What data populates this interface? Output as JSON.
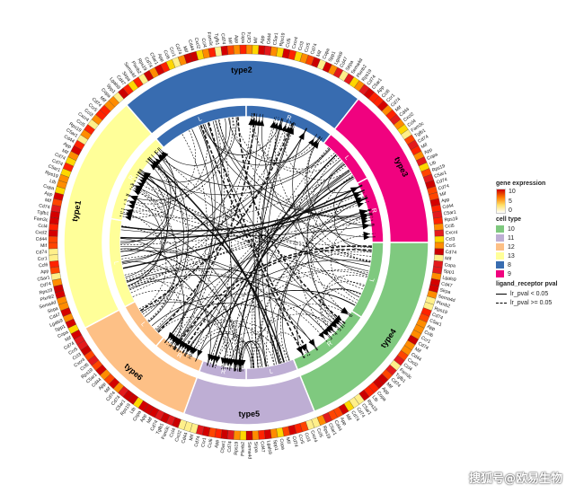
{
  "sectors": [
    {
      "name": "type1",
      "color": "#ffff99",
      "start": 242,
      "end": 319,
      "halves": [
        {
          "label": "L",
          "start": 242,
          "end": 280
        },
        {
          "label": "R",
          "start": 280,
          "end": 319
        }
      ]
    },
    {
      "name": "type2",
      "color": "#386cb0",
      "start": 319,
      "end": 38,
      "halves": [
        {
          "label": "L",
          "start": 319,
          "end": 0
        },
        {
          "label": "R",
          "start": 0,
          "end": 38
        }
      ]
    },
    {
      "name": "type3",
      "color": "#f0027f",
      "start": 38,
      "end": 90,
      "halves": [
        {
          "label": "L",
          "start": 38,
          "end": 62
        },
        {
          "label": "R",
          "start": 62,
          "end": 90
        }
      ]
    },
    {
      "name": "type4",
      "color": "#7fc97f",
      "start": 90,
      "end": 158,
      "halves": [
        {
          "label": "L",
          "start": 90,
          "end": 123
        },
        {
          "label": "R",
          "start": 123,
          "end": 158
        }
      ]
    },
    {
      "name": "type5",
      "color": "#beaed4",
      "start": 158,
      "end": 200,
      "halves": [
        {
          "label": "L",
          "start": 158,
          "end": 180
        },
        {
          "label": "R",
          "start": 180,
          "end": 200
        }
      ]
    },
    {
      "name": "type6",
      "color": "#fdc086",
      "start": 200,
      "end": 242,
      "halves": [
        {
          "label": "R",
          "start": 200,
          "end": 221
        },
        {
          "label": "L",
          "start": 221,
          "end": 242
        }
      ]
    }
  ],
  "gene_labels": [
    "Cd74",
    "Mif",
    "App",
    "Cd44",
    "C5ar1",
    "Rps19",
    "Ccl5",
    "Cxcr4",
    "Ccl3",
    "Ccr5",
    "Cd74",
    "Mif",
    "Copa",
    "Spp1",
    "Lgals9",
    "Cd47",
    "Sirpa",
    "Sema4d",
    "Plxnb2",
    "Rps19",
    "Cd74",
    "C5ar1",
    "App",
    "Ccl6",
    "Ccr1",
    "Cd74",
    "Mif",
    "Cd44",
    "Cxcl2",
    "Ccl4",
    "Fam3c",
    "Tgfb1",
    "Cd74",
    "Mif",
    "App",
    "Copa",
    "Ltb",
    "Rps19",
    "C5ar1",
    "Cd74"
  ],
  "legend": {
    "gene_expression": {
      "title": "gene expression",
      "ticks": [
        "10",
        "5",
        "0"
      ]
    },
    "cell_type": {
      "title": "cell type",
      "items": [
        {
          "label": "10",
          "color": "#7fc97f"
        },
        {
          "label": "11",
          "color": "#beaed4"
        },
        {
          "label": "12",
          "color": "#fdc086"
        },
        {
          "label": "13",
          "color": "#ffff99"
        },
        {
          "label": "8",
          "color": "#386cb0"
        },
        {
          "label": "9",
          "color": "#f0027f"
        }
      ]
    },
    "ligand_receptor_pval": {
      "title": "ligand_receptor pval",
      "items": [
        {
          "label": "lr_pval < 0.05",
          "style": "solid"
        },
        {
          "label": "lr_pval >= 0.05",
          "style": "dashed"
        }
      ]
    }
  },
  "watermark": "搜狐号@欧易生物"
}
